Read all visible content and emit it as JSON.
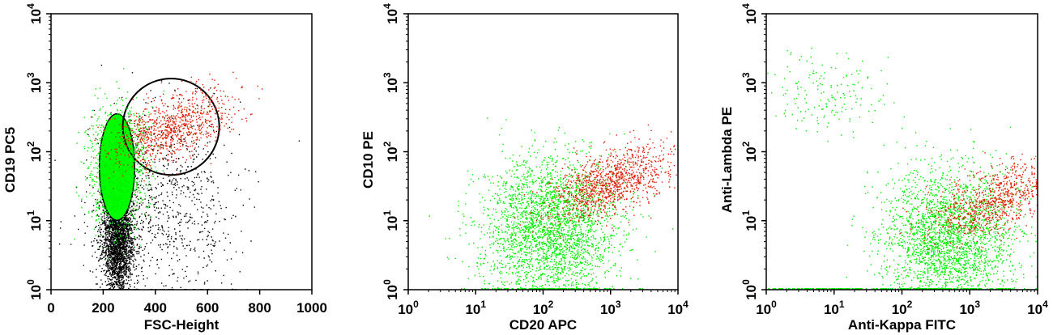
{
  "colors": {
    "background": "#ffffff",
    "axis": "#000000",
    "population_black": "#000000",
    "population_green": "#00ee00",
    "population_red": "#e01a00",
    "gate_fill_green": "#00ff00"
  },
  "chart_data": [
    {
      "type": "scatter",
      "panel": "left",
      "xlabel": "FSC-Height",
      "ylabel": "CD19 PC5",
      "x_scale": "linear",
      "y_scale": "log",
      "xlim": [
        0,
        1000
      ],
      "ylim": [
        1,
        10000
      ],
      "x_ticks": [
        0,
        200,
        400,
        600,
        800,
        1000
      ],
      "x_tick_labels": [
        "0",
        "200",
        "400",
        "600",
        "800",
        "1000"
      ],
      "y_ticks": [
        1,
        10,
        100,
        1000,
        10000
      ],
      "y_tick_labels": [
        {
          "base": "10",
          "exp": "0"
        },
        {
          "base": "10",
          "exp": "1"
        },
        {
          "base": "10",
          "exp": "2"
        },
        {
          "base": "10",
          "exp": "3"
        },
        {
          "base": "10",
          "exp": "4"
        }
      ],
      "series": [
        {
          "color": "black",
          "x_range": [
            190,
            320
          ],
          "y_range": [
            1,
            30
          ],
          "points": 2600
        },
        {
          "color": "black",
          "x_range": [
            130,
            720
          ],
          "y_range": [
            1,
            300
          ],
          "points": 900
        },
        {
          "color": "green",
          "x_center": 255,
          "y_center": 60,
          "points": 1200
        },
        {
          "color": "red",
          "x_center": 460,
          "y_center": 230,
          "points": 900
        }
      ],
      "gates": [
        {
          "shape": "ellipse",
          "fill": "green",
          "x_center": 253,
          "y_center": 60,
          "x_range": [
            185,
            320
          ],
          "y_range": [
            10,
            350
          ]
        },
        {
          "shape": "ellipse",
          "fill": "none",
          "x_center": 460,
          "y_center": 230,
          "x_range": [
            320,
            690
          ],
          "y_range": [
            40,
            1000
          ]
        }
      ]
    },
    {
      "type": "scatter",
      "panel": "middle",
      "xlabel": "CD20 APC",
      "ylabel": "CD10 PE",
      "x_scale": "log",
      "y_scale": "log",
      "xlim": [
        1,
        10000
      ],
      "ylim": [
        1,
        10000
      ],
      "x_ticks": [
        1,
        10,
        100,
        1000,
        10000
      ],
      "x_tick_labels": [
        {
          "base": "10",
          "exp": "0"
        },
        {
          "base": "10",
          "exp": "1"
        },
        {
          "base": "10",
          "exp": "2"
        },
        {
          "base": "10",
          "exp": "3"
        },
        {
          "base": "10",
          "exp": "4"
        }
      ],
      "y_ticks": [
        1,
        10,
        100,
        1000,
        10000
      ],
      "y_tick_labels": [
        {
          "base": "10",
          "exp": "0"
        },
        {
          "base": "10",
          "exp": "1"
        },
        {
          "base": "10",
          "exp": "2"
        },
        {
          "base": "10",
          "exp": "3"
        },
        {
          "base": "10",
          "exp": "4"
        }
      ],
      "series": [
        {
          "color": "green",
          "x_center": 120,
          "y_center": 8,
          "points": 2800
        },
        {
          "color": "red",
          "x_center": 900,
          "y_center": 35,
          "points": 1100
        }
      ]
    },
    {
      "type": "scatter",
      "panel": "right",
      "xlabel": "Anti-Kappa FITC",
      "ylabel": "Anti-Lambda PE",
      "x_scale": "log",
      "y_scale": "log",
      "xlim": [
        1,
        10000
      ],
      "ylim": [
        1,
        10000
      ],
      "x_ticks": [
        1,
        10,
        100,
        1000,
        10000
      ],
      "x_tick_labels": [
        {
          "base": "10",
          "exp": "0"
        },
        {
          "base": "10",
          "exp": "1"
        },
        {
          "base": "10",
          "exp": "2"
        },
        {
          "base": "10",
          "exp": "3"
        },
        {
          "base": "10",
          "exp": "4"
        }
      ],
      "y_ticks": [
        1,
        10,
        100,
        1000,
        10000
      ],
      "y_tick_labels": [
        {
          "base": "10",
          "exp": "0"
        },
        {
          "base": "10",
          "exp": "1"
        },
        {
          "base": "10",
          "exp": "2"
        },
        {
          "base": "10",
          "exp": "3"
        },
        {
          "base": "10",
          "exp": "4"
        }
      ],
      "series": [
        {
          "color": "green",
          "x_center": 500,
          "y_center": 6,
          "points": 2600
        },
        {
          "color": "green",
          "x_center": 8,
          "y_center": 700,
          "points": 170
        },
        {
          "color": "red",
          "x_center": 2200,
          "y_center": 20,
          "points": 800
        }
      ]
    }
  ]
}
